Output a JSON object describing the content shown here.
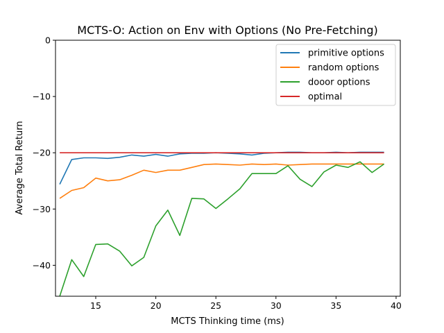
{
  "chart_data": {
    "type": "line",
    "title": "MCTS-O: Action on Env with Options (No Pre-Fetching)",
    "xlabel": "MCTS Thinking time (ms)",
    "ylabel": "Average Total Return",
    "xlim": [
      11.65,
      40.35
    ],
    "ylim": [
      -45.5,
      0
    ],
    "xticks": [
      15,
      20,
      25,
      30,
      35,
      40
    ],
    "yticks": [
      0,
      -10,
      -20,
      -30,
      -40
    ],
    "ytick_labels": [
      "0",
      "−10",
      "−20",
      "−30",
      "−40"
    ],
    "grid": false,
    "legend_position": "top-right",
    "series": [
      {
        "name": "primitive options",
        "color": "#1f77b4",
        "x": [
          12,
          13,
          14,
          15,
          16,
          17,
          18,
          19,
          20,
          21,
          22,
          23,
          24,
          25,
          26,
          27,
          28,
          29,
          30,
          31,
          32,
          33,
          34,
          35,
          36,
          37,
          38,
          39
        ],
        "y": [
          -25.6,
          -21.2,
          -20.9,
          -20.9,
          -21.0,
          -20.8,
          -20.4,
          -20.6,
          -20.3,
          -20.6,
          -20.2,
          -20.1,
          -20.1,
          -20.0,
          -20.1,
          -20.2,
          -20.4,
          -20.1,
          -20.0,
          -19.9,
          -19.9,
          -20.0,
          -20.0,
          -19.9,
          -20.0,
          -19.9,
          -19.9,
          -19.9
        ]
      },
      {
        "name": "random options",
        "color": "#ff7f0e",
        "x": [
          12,
          13,
          14,
          15,
          16,
          17,
          18,
          19,
          20,
          21,
          22,
          23,
          24,
          25,
          26,
          27,
          28,
          29,
          30,
          31,
          32,
          33,
          34,
          35,
          36,
          37,
          38,
          39
        ],
        "y": [
          -28.1,
          -26.7,
          -26.2,
          -24.5,
          -25.0,
          -24.8,
          -24.0,
          -23.1,
          -23.5,
          -23.1,
          -23.1,
          -22.6,
          -22.1,
          -22.0,
          -22.1,
          -22.2,
          -22.0,
          -22.1,
          -22.0,
          -22.2,
          -22.1,
          -22.0,
          -22.0,
          -22.0,
          -22.0,
          -22.0,
          -22.0,
          -22.0
        ]
      },
      {
        "name": "dooor options",
        "color": "#2ca02c",
        "x": [
          12,
          13,
          14,
          15,
          16,
          17,
          18,
          19,
          20,
          21,
          22,
          23,
          24,
          25,
          26,
          27,
          28,
          29,
          30,
          31,
          32,
          33,
          34,
          35,
          36,
          37,
          38,
          39
        ],
        "y": [
          -45.5,
          -39.0,
          -42.0,
          -36.3,
          -36.2,
          -37.5,
          -40.1,
          -38.6,
          -33.0,
          -30.2,
          -34.7,
          -28.1,
          -28.2,
          -29.9,
          -28.2,
          -26.4,
          -23.7,
          -23.7,
          -23.7,
          -22.3,
          -24.7,
          -26.0,
          -23.4,
          -22.2,
          -22.6,
          -21.6,
          -23.5,
          -22.0
        ]
      },
      {
        "name": "optimal",
        "color": "#d62728",
        "x": [
          12,
          13,
          14,
          15,
          16,
          17,
          18,
          19,
          20,
          21,
          22,
          23,
          24,
          25,
          26,
          27,
          28,
          29,
          30,
          31,
          32,
          33,
          34,
          35,
          36,
          37,
          38,
          39
        ],
        "y": [
          -20,
          -20,
          -20,
          -20,
          -20,
          -20,
          -20,
          -20,
          -20,
          -20,
          -20,
          -20,
          -20,
          -20,
          -20,
          -20,
          -20,
          -20,
          -20,
          -20,
          -20,
          -20,
          -20,
          -20,
          -20,
          -20,
          -20,
          -20
        ]
      }
    ]
  }
}
